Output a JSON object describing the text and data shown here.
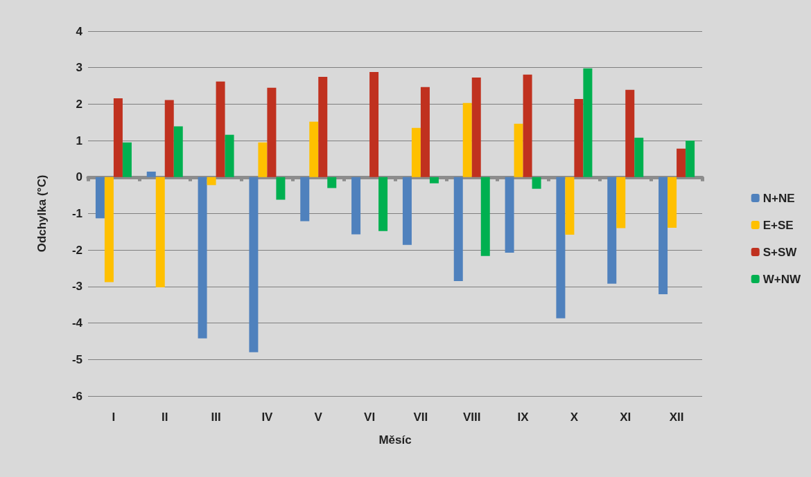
{
  "chart_data": {
    "type": "bar",
    "xlabel": "Měsíc",
    "ylabel": "Odchylka (°C)",
    "categories": [
      "I",
      "II",
      "III",
      "IV",
      "V",
      "VI",
      "VII",
      "VIII",
      "IX",
      "X",
      "XI",
      "XII"
    ],
    "series": [
      {
        "name": "N+NE",
        "color": "#4f81bd",
        "values": [
          -1.13,
          0.15,
          -4.42,
          -4.8,
          -1.21,
          -1.57,
          -1.86,
          -2.85,
          -2.07,
          -3.87,
          -2.92,
          -3.21
        ]
      },
      {
        "name": "E+SE",
        "color": "#ffc000",
        "values": [
          -2.88,
          -3.02,
          -0.22,
          0.95,
          1.52,
          0,
          1.35,
          2.03,
          1.46,
          -1.58,
          -1.4,
          -1.39
        ]
      },
      {
        "name": "S+SW",
        "color": "#c0311f",
        "values": [
          2.16,
          2.11,
          2.62,
          2.45,
          2.75,
          2.88,
          2.47,
          2.73,
          2.81,
          2.14,
          2.39,
          0.78
        ]
      },
      {
        "name": "W+NW",
        "color": "#00b050",
        "values": [
          0.95,
          1.39,
          1.16,
          -0.62,
          -0.3,
          -1.48,
          -0.17,
          -2.16,
          -0.32,
          2.98,
          1.08,
          1.0
        ]
      }
    ],
    "ylim": [
      -6,
      4
    ],
    "yticks": [
      -6,
      -5,
      -4,
      -3,
      -2,
      -1,
      0,
      1,
      2,
      3,
      4
    ],
    "grid": "y",
    "legend": "right"
  }
}
